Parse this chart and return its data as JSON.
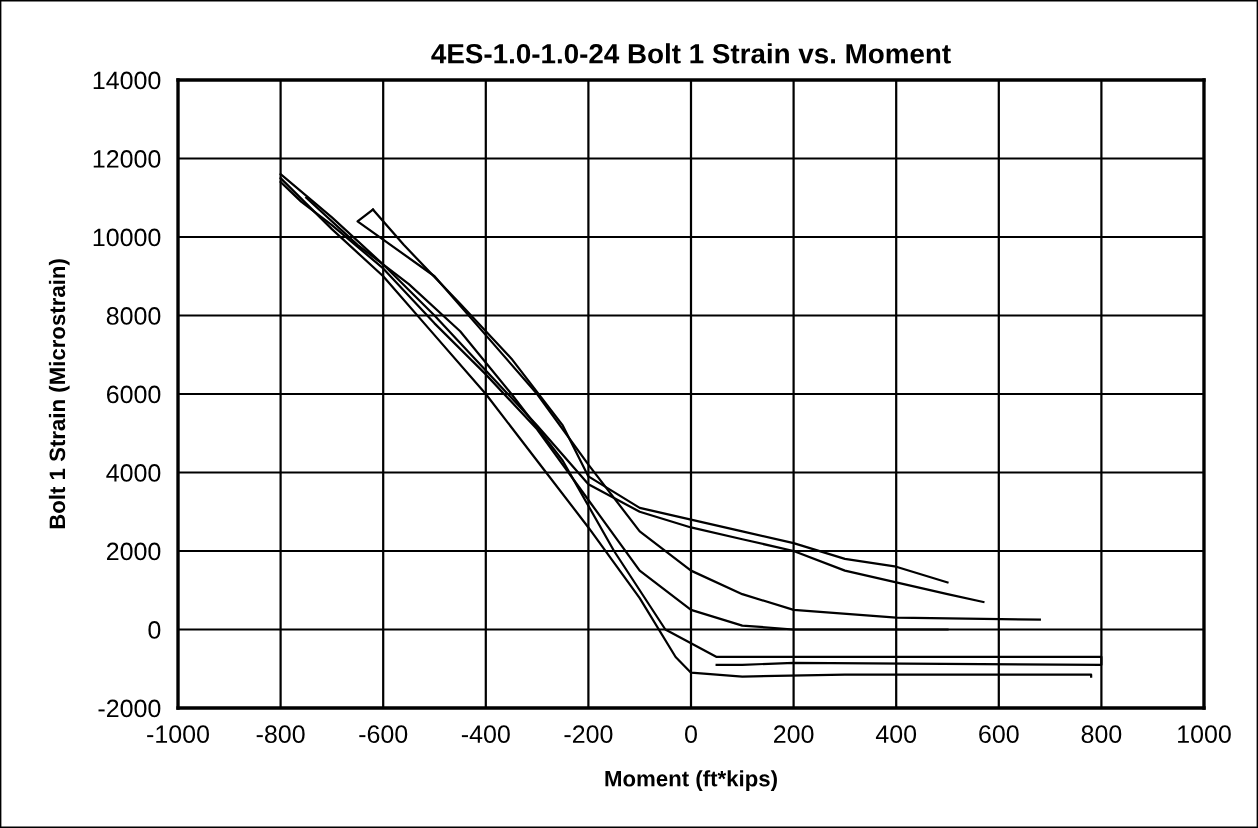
{
  "chart_data": {
    "type": "line",
    "title": "4ES-1.0-1.0-24 Bolt 1 Strain vs. Moment",
    "xlabel": "Moment (ft*kips)",
    "ylabel": "Bolt 1 Strain (Microstrain)",
    "xlim": [
      -1000,
      1000
    ],
    "xticks": [
      -1000,
      -800,
      -600,
      -400,
      -200,
      0,
      200,
      400,
      600,
      800,
      1000
    ],
    "ylim": [
      -2000,
      14000
    ],
    "yticks": [
      -2000,
      0,
      2000,
      4000,
      6000,
      8000,
      10000,
      12000,
      14000
    ],
    "grid": true,
    "marker": "none",
    "line_style": "solid",
    "series": [
      {
        "color": "#000000",
        "x": [
          -800,
          -700,
          -600,
          -500,
          -400,
          -300,
          -200,
          -100,
          0,
          100,
          200,
          300,
          400,
          500,
          570
        ],
        "values": [
          11600,
          10500,
          9300,
          8000,
          6600,
          5200,
          3700,
          3000,
          2600,
          2300,
          2000,
          1500,
          1200,
          900,
          700
        ]
      },
      {
        "color": "#000000",
        "x": [
          -800,
          -700,
          -600,
          -500,
          -400,
          -300,
          -200,
          -100,
          -30,
          0,
          100,
          300,
          500,
          780,
          780
        ],
        "values": [
          11500,
          10200,
          9000,
          7500,
          6000,
          4300,
          2600,
          800,
          -700,
          -1100,
          -1200,
          -1150,
          -1150,
          -1150,
          -1200
        ]
      },
      {
        "color": "#000000",
        "x": [
          -750,
          -650,
          -550,
          -450,
          -350,
          -250,
          -150,
          -50,
          50,
          200,
          500,
          800,
          800,
          200,
          100,
          50
        ],
        "values": [
          11000,
          9800,
          8800,
          7600,
          6000,
          4300,
          2000,
          0,
          -700,
          -700,
          -700,
          -700,
          -900,
          -850,
          -900,
          -900
        ]
      },
      {
        "color": "#000000",
        "x": [
          -620,
          -650,
          -500,
          -400,
          -300,
          -200,
          -100,
          0,
          100,
          200,
          400,
          680
        ],
        "values": [
          10700,
          10400,
          9000,
          7500,
          6000,
          4200,
          2500,
          1500,
          900,
          500,
          300,
          250
        ]
      },
      {
        "color": "#000000",
        "x": [
          -800,
          -760,
          -700,
          -600,
          -500,
          -400,
          -300,
          -200,
          -100,
          0,
          100,
          200,
          400,
          500
        ],
        "values": [
          11400,
          10900,
          10300,
          9200,
          7800,
          6500,
          5100,
          3300,
          1500,
          500,
          100,
          0,
          0,
          0
        ]
      },
      {
        "color": "#000000",
        "x": [
          -620,
          -560,
          -450,
          -350,
          -250,
          -200,
          -100,
          0,
          100,
          200,
          300,
          400,
          500
        ],
        "values": [
          10700,
          9800,
          8300,
          6900,
          5200,
          3900,
          3100,
          2800,
          2500,
          2200,
          1800,
          1600,
          1200
        ]
      }
    ]
  }
}
